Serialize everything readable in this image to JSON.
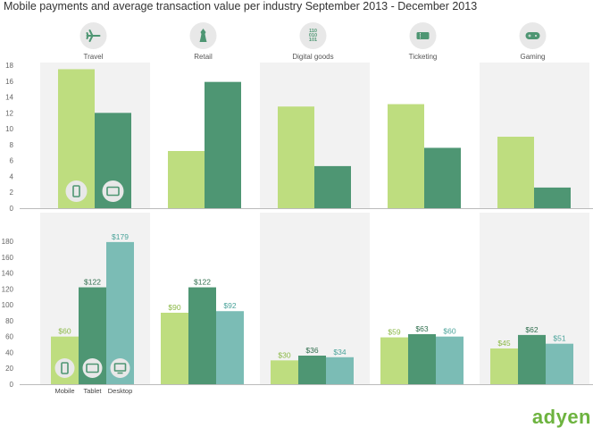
{
  "title": "Mobile payments and average transaction value per industry September 2013 - December 2013",
  "colors": {
    "light_green": "#bedd7f",
    "dark_green": "#4e9673",
    "teal": "#7bbcb5",
    "icon_circle": "#e8e8e8",
    "icon_glyph": "#4e9673",
    "band_bg": "#f2f2f2",
    "value_label_light": "#8ab845",
    "value_label_dark": "#2f6e4d",
    "value_label_teal": "#4aa39a",
    "brand": "#6db33f"
  },
  "brand_logo_text": "adyen",
  "chart_data": [
    {
      "type": "bar",
      "categories": [
        "Travel",
        "Retail",
        "Digital goods",
        "Ticketing",
        "Gaming"
      ],
      "category_icons": [
        "airplane-icon",
        "chess-piece-icon",
        "binary-icon",
        "ticket-icon",
        "gamepad-icon"
      ],
      "series": [
        {
          "device": "Mobile",
          "icon": "mobile-phone-icon",
          "values": [
            17.5,
            7.2,
            12.8,
            13.1,
            9.0
          ]
        },
        {
          "device": "Tablet",
          "icon": "tablet-icon",
          "values": [
            12.0,
            15.9,
            5.3,
            7.6,
            2.6
          ]
        }
      ],
      "ylim": [
        0,
        18
      ],
      "yticks": [
        0,
        2,
        4,
        6,
        8,
        10,
        12,
        14,
        16,
        18
      ],
      "grid": false,
      "xlabel": "",
      "ylabel": ""
    },
    {
      "type": "bar",
      "categories": [
        "Travel",
        "Retail",
        "Digital goods",
        "Ticketing",
        "Gaming"
      ],
      "series": [
        {
          "name": "Mobile",
          "icon": "mobile-phone-icon",
          "values": [
            60,
            90,
            30,
            59,
            45
          ],
          "labels": [
            "$60",
            "$90",
            "$30",
            "$59",
            "$45"
          ]
        },
        {
          "name": "Tablet",
          "icon": "tablet-icon",
          "values": [
            122,
            122,
            36,
            63,
            62
          ],
          "labels": [
            "$122",
            "$122",
            "$36",
            "$63",
            "$62"
          ]
        },
        {
          "name": "Desktop",
          "icon": "desktop-monitor-icon",
          "values": [
            179,
            92,
            34,
            60,
            51
          ],
          "labels": [
            "$179",
            "$92",
            "$34",
            "$60",
            "$51"
          ]
        }
      ],
      "ylim": [
        0,
        180
      ],
      "yticks": [
        0,
        20,
        40,
        60,
        80,
        100,
        120,
        140,
        160,
        180
      ],
      "grid": false,
      "xlabel": "",
      "ylabel": ""
    }
  ]
}
